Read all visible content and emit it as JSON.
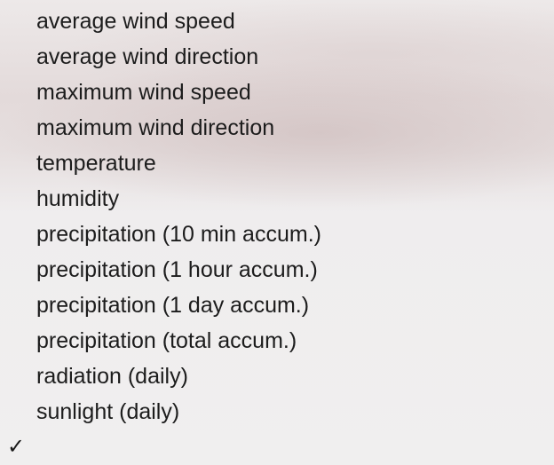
{
  "menu": {
    "items": [
      {
        "label": "average wind speed",
        "checked": ""
      },
      {
        "label": "average wind direction",
        "checked": ""
      },
      {
        "label": "maximum wind speed",
        "checked": ""
      },
      {
        "label": "maximum wind direction",
        "checked": ""
      },
      {
        "label": "temperature",
        "checked": ""
      },
      {
        "label": "humidity",
        "checked": ""
      },
      {
        "label": "precipitation (10 min accum.)",
        "checked": ""
      },
      {
        "label": "precipitation (1 hour accum.)",
        "checked": ""
      },
      {
        "label": "precipitation (1 day accum.)",
        "checked": ""
      },
      {
        "label": "precipitation (total accum.)",
        "checked": ""
      },
      {
        "label": "radiation (daily)",
        "checked": ""
      },
      {
        "label": "sunlight (daily)",
        "checked": ""
      },
      {
        "label": "",
        "checked": "✓"
      }
    ]
  }
}
